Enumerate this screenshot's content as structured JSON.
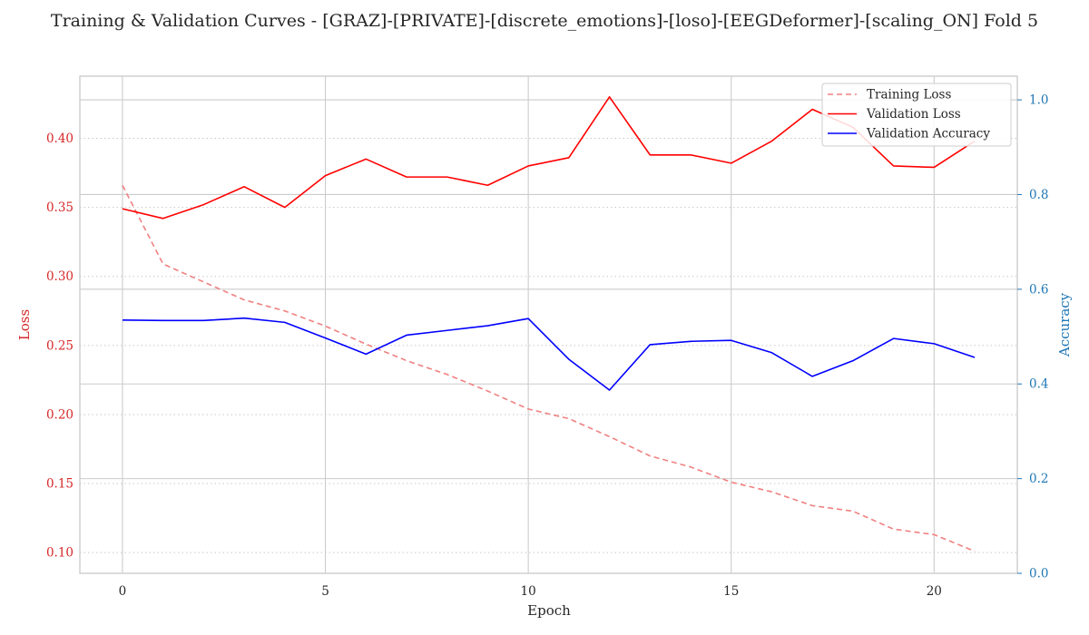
{
  "chart_data": {
    "type": "line",
    "title": "Training & Validation Curves - [GRAZ]-[PRIVATE]-[discrete_emotions]-[loso]-[EEGDeformer]-[scaling_ON] Fold 5",
    "xlabel": "Epoch",
    "ylabel_left": "Loss",
    "ylabel_right": "Accuracy",
    "x": [
      0,
      1,
      2,
      3,
      4,
      5,
      6,
      7,
      8,
      9,
      10,
      11,
      12,
      13,
      14,
      15,
      16,
      17,
      18,
      19,
      20,
      21
    ],
    "xlim": [
      -1.05,
      22.05
    ],
    "ylim_left": [
      0.085,
      0.445
    ],
    "ylim_right": [
      0.0,
      1.05
    ],
    "x_ticks": [
      0,
      5,
      10,
      15,
      20
    ],
    "y_ticks_left": [
      0.1,
      0.15,
      0.2,
      0.25,
      0.3,
      0.35,
      0.4
    ],
    "y_ticks_right": [
      0.0,
      0.2,
      0.4,
      0.6,
      0.8,
      1.0
    ],
    "grid": true,
    "legend_position": "top-right",
    "series": [
      {
        "name": "Training Loss",
        "axis": "left",
        "color": "#f08080",
        "style": "dashed",
        "values": [
          0.366,
          0.309,
          0.296,
          0.283,
          0.275,
          0.264,
          0.251,
          0.239,
          0.229,
          0.217,
          0.204,
          0.197,
          0.184,
          0.17,
          0.162,
          0.151,
          0.144,
          0.134,
          0.13,
          0.117,
          0.113,
          0.101
        ]
      },
      {
        "name": "Validation Loss",
        "axis": "left",
        "color": "#ff0000",
        "style": "solid",
        "values": [
          0.349,
          0.342,
          0.352,
          0.365,
          0.35,
          0.373,
          0.385,
          0.372,
          0.372,
          0.366,
          0.38,
          0.386,
          0.43,
          0.388,
          0.388,
          0.382,
          0.398,
          0.421,
          0.408,
          0.38,
          0.379,
          0.398
        ]
      },
      {
        "name": "Validation Accuracy",
        "axis": "right",
        "color": "#0000ff",
        "style": "solid",
        "values": [
          0.535,
          0.534,
          0.534,
          0.539,
          0.53,
          0.497,
          0.463,
          0.503,
          0.513,
          0.523,
          0.538,
          0.452,
          0.387,
          0.483,
          0.49,
          0.492,
          0.466,
          0.416,
          0.449,
          0.496,
          0.485,
          0.456
        ]
      }
    ],
    "colors": {
      "left_axis": "#d62728",
      "right_axis": "#1f77b4",
      "grid": "#cccccc",
      "text": "#262626"
    }
  }
}
